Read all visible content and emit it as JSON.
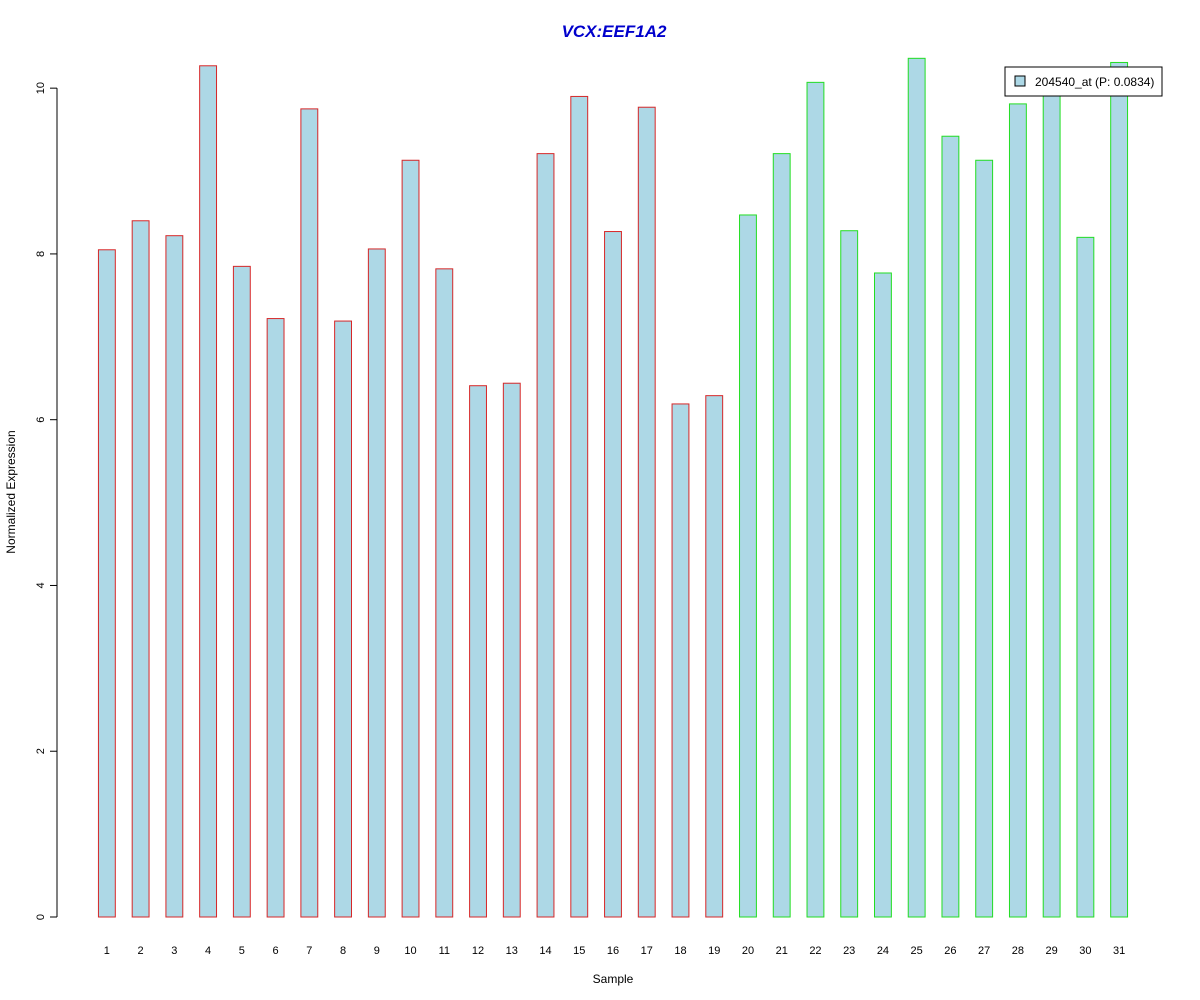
{
  "chart_data": {
    "type": "bar",
    "title": "VCX:EEF1A2",
    "xlabel": "Sample",
    "ylabel": "Normalized Expression",
    "ylim": [
      0,
      10.4
    ],
    "yticks": [
      0,
      2,
      4,
      6,
      8,
      10
    ],
    "categories": [
      "1",
      "2",
      "3",
      "4",
      "5",
      "6",
      "7",
      "8",
      "9",
      "10",
      "11",
      "12",
      "13",
      "14",
      "15",
      "16",
      "17",
      "18",
      "19",
      "20",
      "21",
      "22",
      "23",
      "24",
      "25",
      "26",
      "27",
      "28",
      "29",
      "30",
      "31"
    ],
    "series": [
      {
        "name": "204540_at (P: 0.0834)",
        "values": [
          8.05,
          8.4,
          8.22,
          10.27,
          7.85,
          7.22,
          9.75,
          7.19,
          8.06,
          9.13,
          7.82,
          6.41,
          6.44,
          9.21,
          9.9,
          8.27,
          9.77,
          6.19,
          6.29,
          8.47,
          9.21,
          10.07,
          8.28,
          7.77,
          10.36,
          9.42,
          9.13,
          9.81,
          9.95,
          8.2,
          10.31
        ]
      }
    ],
    "groups": [
      {
        "from": 1,
        "to": 19,
        "border_color": "#d62728"
      },
      {
        "from": 20,
        "to": 31,
        "border_color": "#22dd22"
      }
    ],
    "bar_fill": "#add8e6",
    "title_color": "#0000cc",
    "legend": {
      "position": "top-right",
      "label": "204540_at (P: 0.0834)"
    },
    "grid": false
  }
}
